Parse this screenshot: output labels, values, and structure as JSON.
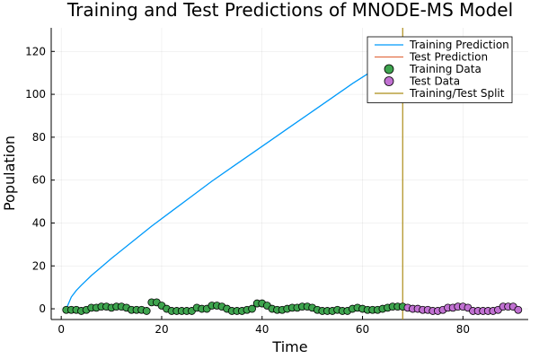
{
  "chart_data": {
    "type": "line",
    "title": "Training and Test Predictions of MNODE-MS Model",
    "xlabel": "Time",
    "ylabel": "Population",
    "xlim": [
      -2,
      93
    ],
    "ylim": [
      -5,
      131
    ],
    "xticks": [
      0,
      20,
      40,
      60,
      80
    ],
    "yticks": [
      0,
      20,
      40,
      60,
      80,
      100,
      120
    ],
    "grid": true,
    "legend_position": "top-right",
    "split_x": 68,
    "series": [
      {
        "name": "Training Prediction",
        "kind": "line",
        "color": "#009AFA",
        "x": [
          1,
          2,
          3,
          4,
          6,
          8,
          10,
          14,
          18,
          22,
          26,
          30,
          34,
          38,
          42,
          46,
          50,
          54,
          58,
          62,
          66,
          68
        ],
        "y": [
          0,
          5.5,
          8.5,
          11,
          15.5,
          19.5,
          23.5,
          31,
          38.5,
          45.5,
          52.5,
          59.5,
          66,
          72.5,
          79,
          85.5,
          92,
          98.5,
          105,
          111,
          117,
          120
        ]
      },
      {
        "name": "Test Prediction",
        "kind": "line",
        "color": "#E26F46",
        "x": [],
        "y": []
      },
      {
        "name": "Training Data",
        "kind": "scatter",
        "color": "#3EA44E",
        "x": [
          1,
          2,
          3,
          4,
          5,
          6,
          7,
          8,
          9,
          10,
          11,
          12,
          13,
          14,
          15,
          16,
          17,
          18,
          19,
          20,
          21,
          22,
          23,
          24,
          25,
          26,
          27,
          28,
          29,
          30,
          31,
          32,
          33,
          34,
          35,
          36,
          37,
          38,
          39,
          40,
          41,
          42,
          43,
          44,
          45,
          46,
          47,
          48,
          49,
          50,
          51,
          52,
          53,
          54,
          55,
          56,
          57,
          58,
          59,
          60,
          61,
          62,
          63,
          64,
          65,
          66,
          67,
          68
        ],
        "y": [
          -0.5,
          -0.5,
          -0.5,
          -1,
          -0.5,
          0.5,
          0.5,
          1,
          1,
          0.5,
          1,
          1,
          0.5,
          -0.5,
          -0.5,
          -0.5,
          -1,
          3,
          3,
          1.5,
          0,
          -1,
          -1,
          -1,
          -1,
          -1,
          0.5,
          0,
          0,
          1.5,
          1.5,
          1,
          0,
          -1,
          -1,
          -1,
          -0.5,
          0,
          2.5,
          2.5,
          1.5,
          0,
          -0.5,
          -0.5,
          0,
          0.5,
          0.5,
          1,
          1,
          0.5,
          -0.5,
          -1,
          -1,
          -1,
          -0.5,
          -1,
          -1,
          0,
          0.5,
          0,
          -0.5,
          -0.5,
          -0.5,
          0,
          0.5,
          1,
          1,
          1
        ]
      },
      {
        "name": "Test Data",
        "kind": "scatter",
        "color": "#C171D2",
        "x": [
          69,
          70,
          71,
          72,
          73,
          74,
          75,
          76,
          77,
          78,
          79,
          80,
          81,
          82,
          83,
          84,
          85,
          86,
          87,
          88,
          89,
          90,
          91
        ],
        "y": [
          0.5,
          0,
          0,
          -0.5,
          -0.5,
          -1,
          -1,
          -0.5,
          0.5,
          0.5,
          1,
          1,
          0.5,
          -1,
          -1,
          -1,
          -1,
          -1,
          -0.5,
          1,
          1,
          1,
          -0.5
        ]
      },
      {
        "name": "Training/Test Split",
        "kind": "vline",
        "color": "#AC8D18",
        "x": [
          68
        ]
      }
    ]
  }
}
